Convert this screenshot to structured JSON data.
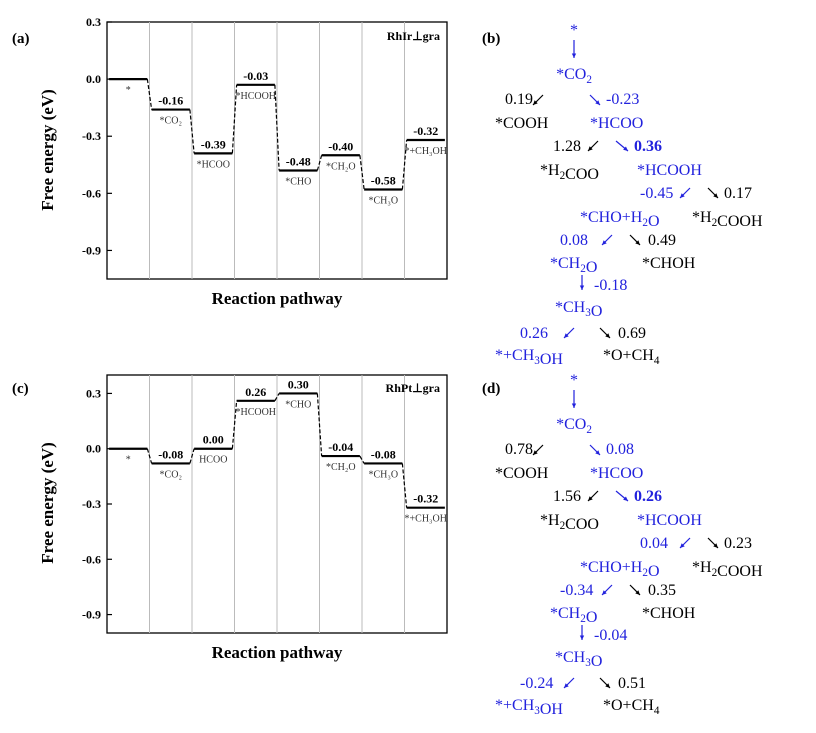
{
  "panels": {
    "a": {
      "label": "(a)",
      "ylabel": "Free energy (eV)",
      "xlabel": "Reaction pathway",
      "tag": "RhIr⊥gra"
    },
    "b": {
      "label": "(b)"
    },
    "c": {
      "label": "(c)",
      "ylabel": "Free energy (eV)",
      "xlabel": "Reaction pathway",
      "tag": "RhPt⊥gra"
    },
    "d": {
      "label": "(d)"
    }
  },
  "chart_data": [
    {
      "type": "line",
      "panel": "a",
      "title": "",
      "xlabel": "Reaction pathway",
      "ylabel": "Free energy (eV)",
      "ylim": [
        -1.05,
        0.3
      ],
      "yticks": [
        "0.3",
        "0.0",
        "-0.3",
        "-0.6",
        "-0.9"
      ],
      "steps": [
        "*",
        "*CO₂",
        "*HCOO",
        "*HCOOH",
        "*CHO",
        "*CH₂O",
        "*CH₃O",
        "*+CH₃OH"
      ],
      "values": [
        0.0,
        -0.16,
        -0.39,
        -0.03,
        -0.48,
        -0.4,
        -0.58,
        -0.32
      ],
      "value_labels": [
        "",
        "-0.16",
        "-0.39",
        "-0.03",
        "-0.48",
        "-0.40",
        "-0.58",
        "-0.32"
      ],
      "grid": false
    },
    {
      "type": "line",
      "panel": "c",
      "title": "",
      "xlabel": "Reaction pathway",
      "ylabel": "Free energy (eV)",
      "ylim": [
        -1.0,
        0.4
      ],
      "yticks": [
        "0.3",
        "0.0",
        "-0.3",
        "-0.6",
        "-0.9"
      ],
      "steps": [
        "*",
        "*CO₂",
        "HCOO",
        "*HCOOH",
        "*CHO",
        "*CH₂O",
        "*CH₃O",
        "*+CH₃OH"
      ],
      "values": [
        0.0,
        -0.08,
        0.0,
        0.26,
        0.3,
        -0.04,
        -0.08,
        -0.32
      ],
      "value_labels": [
        "",
        "-0.08",
        "0.00",
        "0.26",
        "0.30",
        "-0.04",
        "-0.08",
        "-0.32"
      ],
      "grid": false
    }
  ],
  "trees": {
    "b": {
      "root": "*",
      "co2": "*CO₂",
      "e_cooh": "0.19",
      "e_hcoo": "-0.23",
      "cooh": "*COOH",
      "hcoo": "*HCOO",
      "e_h2coo": "1.28",
      "e_hcooh": "0.36",
      "h2coo": "*H₂COO",
      "hcooh": "*HCOOH",
      "e_choh2o": "-0.45",
      "e_h2cooh": "0.17",
      "choh2o": "*CHO+H₂O",
      "h2cooh": "*H₂COOH",
      "e_ch2o": "0.08",
      "e_choh": "0.49",
      "ch2o": "*CH₂O",
      "choh": "*CHOH",
      "e_ch3o": "-0.18",
      "ch3o": "*CH₃O",
      "e_ch3oh": "0.26",
      "e_och4": "0.69",
      "ch3oh": "*+CH₃OH",
      "och4": "*O+CH₄"
    },
    "d": {
      "root": "*",
      "co2": "*CO₂",
      "e_cooh": "0.78",
      "e_hcoo": "0.08",
      "cooh": "*COOH",
      "hcoo": "*HCOO",
      "e_h2coo": "1.56",
      "e_hcooh": "0.26",
      "h2coo": "*H₂COO",
      "hcooh": "*HCOOH",
      "e_choh2o": "0.04",
      "e_h2cooh": "0.23",
      "choh2o": "*CHO+H₂O",
      "h2cooh": "*H₂COOH",
      "e_ch2o": "-0.34",
      "e_choh": "0.35",
      "ch2o": "*CH₂O",
      "choh": "*CHOH",
      "e_ch3o": "-0.04",
      "ch3o": "*CH₃O",
      "e_ch3oh": "-0.24",
      "e_och4": "0.51",
      "ch3oh": "*+CH₃OH",
      "och4": "*O+CH₄"
    }
  },
  "colors": {
    "highlight": "#2222dd",
    "text": "#000000",
    "divider": "#bbbbbb"
  }
}
